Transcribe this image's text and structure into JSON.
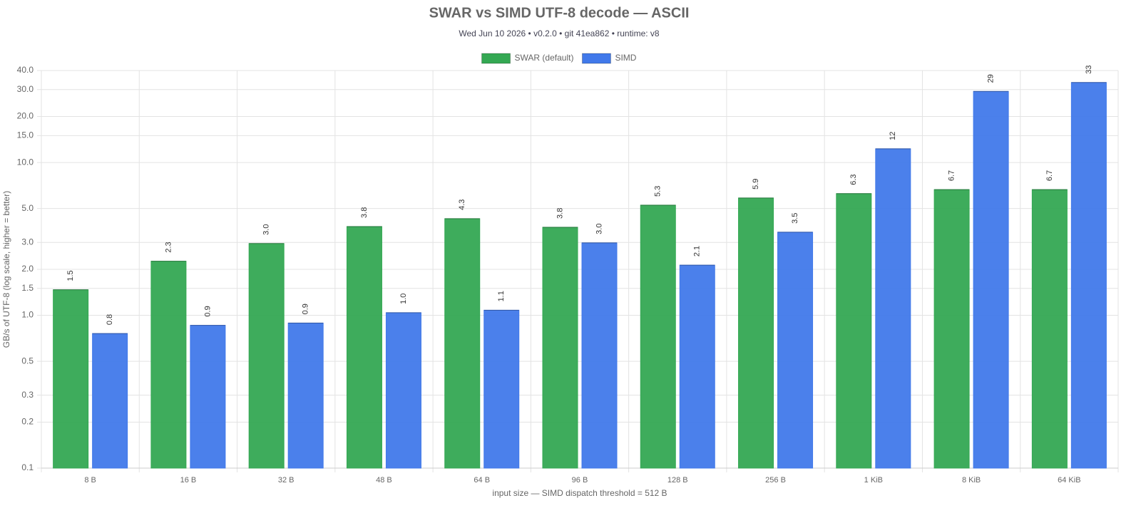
{
  "chart_data": {
    "type": "bar",
    "title": "SWAR vs SIMD UTF-8 decode — ASCII",
    "subtitle": "Wed Jun 10 2026 • v0.2.0 • git 41ea862 • runtime: v8",
    "x_label": "input size — SIMD dispatch threshold = 512 B",
    "y_label": "GB/s of UTF-8 (log scale, higher = better)",
    "categories": [
      "8 B",
      "16 B",
      "32 B",
      "48 B",
      "64 B",
      "96 B",
      "128 B",
      "256 B",
      "1 KiB",
      "8 KiB",
      "64 KiB"
    ],
    "series": [
      {
        "name": "SWAR (default)",
        "color": "#34a853",
        "values": [
          1.47,
          2.26,
          2.95,
          3.81,
          4.29,
          3.77,
          5.26,
          5.86,
          6.26,
          6.65,
          6.65
        ],
        "value_labels": [
          "1.5",
          "2.3",
          "3.0",
          "3.8",
          "4.3",
          "3.8",
          "5.3",
          "5.9",
          "6.3",
          "6.7",
          "6.7"
        ]
      },
      {
        "name": "SIMD",
        "color": "#4179ea",
        "values": [
          0.76,
          0.86,
          0.89,
          1.04,
          1.08,
          2.98,
          2.13,
          3.5,
          12.3,
          29.2,
          33.4
        ],
        "value_labels": [
          "0.8",
          "0.9",
          "0.9",
          "1.0",
          "1.1",
          "3.0",
          "2.1",
          "3.5",
          "12",
          "29",
          "33"
        ]
      }
    ],
    "log_scale": true,
    "ylim": [
      0.1,
      40
    ],
    "yticks": [
      0.1,
      0.2,
      0.3,
      0.5,
      {
        "value": 1,
        "label": "1.0"
      },
      1.5,
      {
        "value": 2,
        "label": "2.0"
      },
      {
        "value": 3,
        "label": "3.0"
      },
      {
        "value": 5,
        "label": "5.0"
      },
      {
        "value": 10,
        "label": "10.0"
      },
      {
        "value": 15,
        "label": "15.0"
      },
      {
        "value": 20,
        "label": "20.0"
      },
      {
        "value": 30,
        "label": "30.0"
      },
      {
        "value": 40,
        "label": "40.0"
      }
    ],
    "grid": true,
    "legend": "top"
  }
}
